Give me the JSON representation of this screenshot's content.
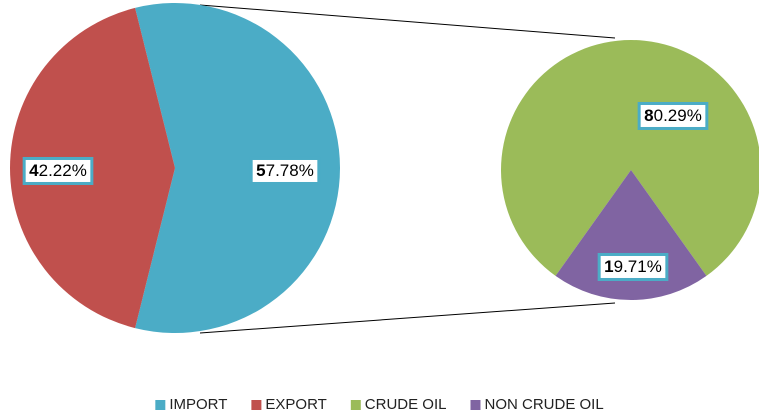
{
  "chart_data": {
    "type": "pie-of-pie",
    "pies": [
      {
        "categories": [
          "IMPORT",
          "EXPORT"
        ],
        "values": [
          57.78,
          42.22
        ],
        "value_labels": [
          "57.78%",
          "42.22%"
        ],
        "colors": [
          "#4bacc6",
          "#c0504d"
        ]
      },
      {
        "categories": [
          "CRUDE OIL",
          "NON CRUDE OIL"
        ],
        "values": [
          80.29,
          19.71
        ],
        "value_labels": [
          "80.29%",
          "19.71%"
        ],
        "colors": [
          "#9bbb59",
          "#8064a2"
        ]
      }
    ],
    "legend": "bottom"
  }
}
